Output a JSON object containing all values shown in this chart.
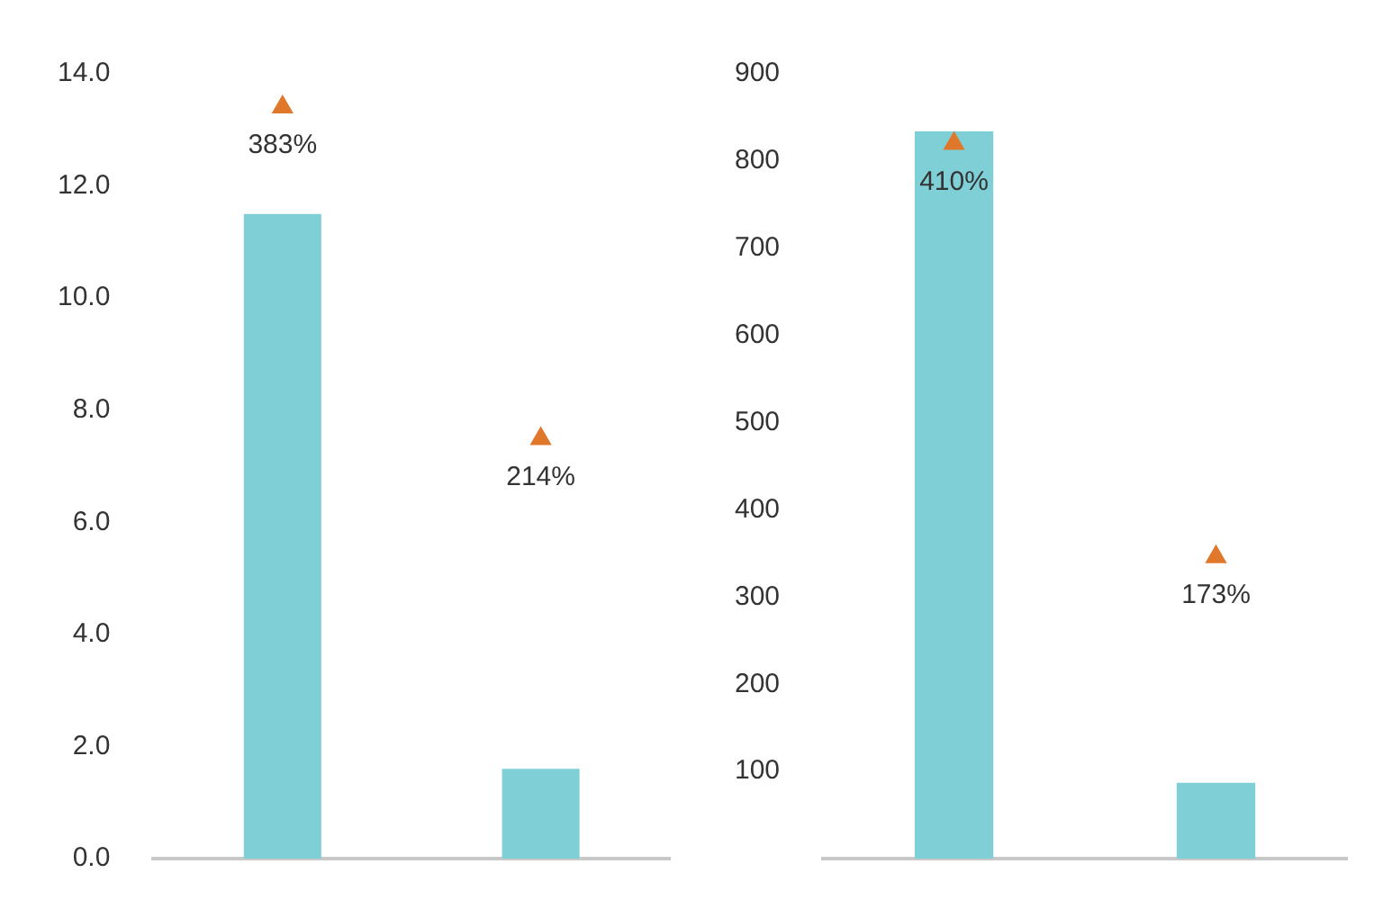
{
  "chart_data": [
    {
      "type": "bar",
      "categories": [
        null,
        null
      ],
      "ylim": [
        0,
        14
      ],
      "yticks": [
        {
          "value": 0,
          "label": "0.0"
        },
        {
          "value": 2,
          "label": "2.0"
        },
        {
          "value": 4,
          "label": "4.0"
        },
        {
          "value": 6,
          "label": "6.0"
        },
        {
          "value": 8,
          "label": "8.0"
        },
        {
          "value": 10,
          "label": "10.0"
        },
        {
          "value": 12,
          "label": "12.0"
        },
        {
          "value": 14,
          "label": "14.0"
        }
      ],
      "grid": false,
      "legend": false,
      "tick_labels": "y",
      "series": [
        {
          "color": "#7fd0d6",
          "values": [
            11.5,
            1.6
          ]
        },
        {
          "type": "scatter",
          "axis": "y2",
          "color": "#e0782c",
          "marker": "triangle",
          "values": [
            383,
            214
          ],
          "value_labels": [
            "383%",
            "214%"
          ]
        }
      ]
    },
    {
      "type": "bar",
      "categories": [
        null,
        null
      ],
      "ylim": [
        0,
        900
      ],
      "yticks": [
        100,
        200,
        300,
        400,
        500,
        600,
        700,
        800,
        900
      ],
      "grid": false,
      "legend": false,
      "tick_labels": "y",
      "series": [
        {
          "color": "#7fd0d6",
          "values": [
            834,
            87
          ]
        },
        {
          "type": "scatter",
          "axis": "y2",
          "color": "#e0782c",
          "marker": "triangle",
          "values": [
            410,
            173
          ],
          "value_labels": [
            "410%",
            "173%"
          ]
        }
      ]
    }
  ]
}
